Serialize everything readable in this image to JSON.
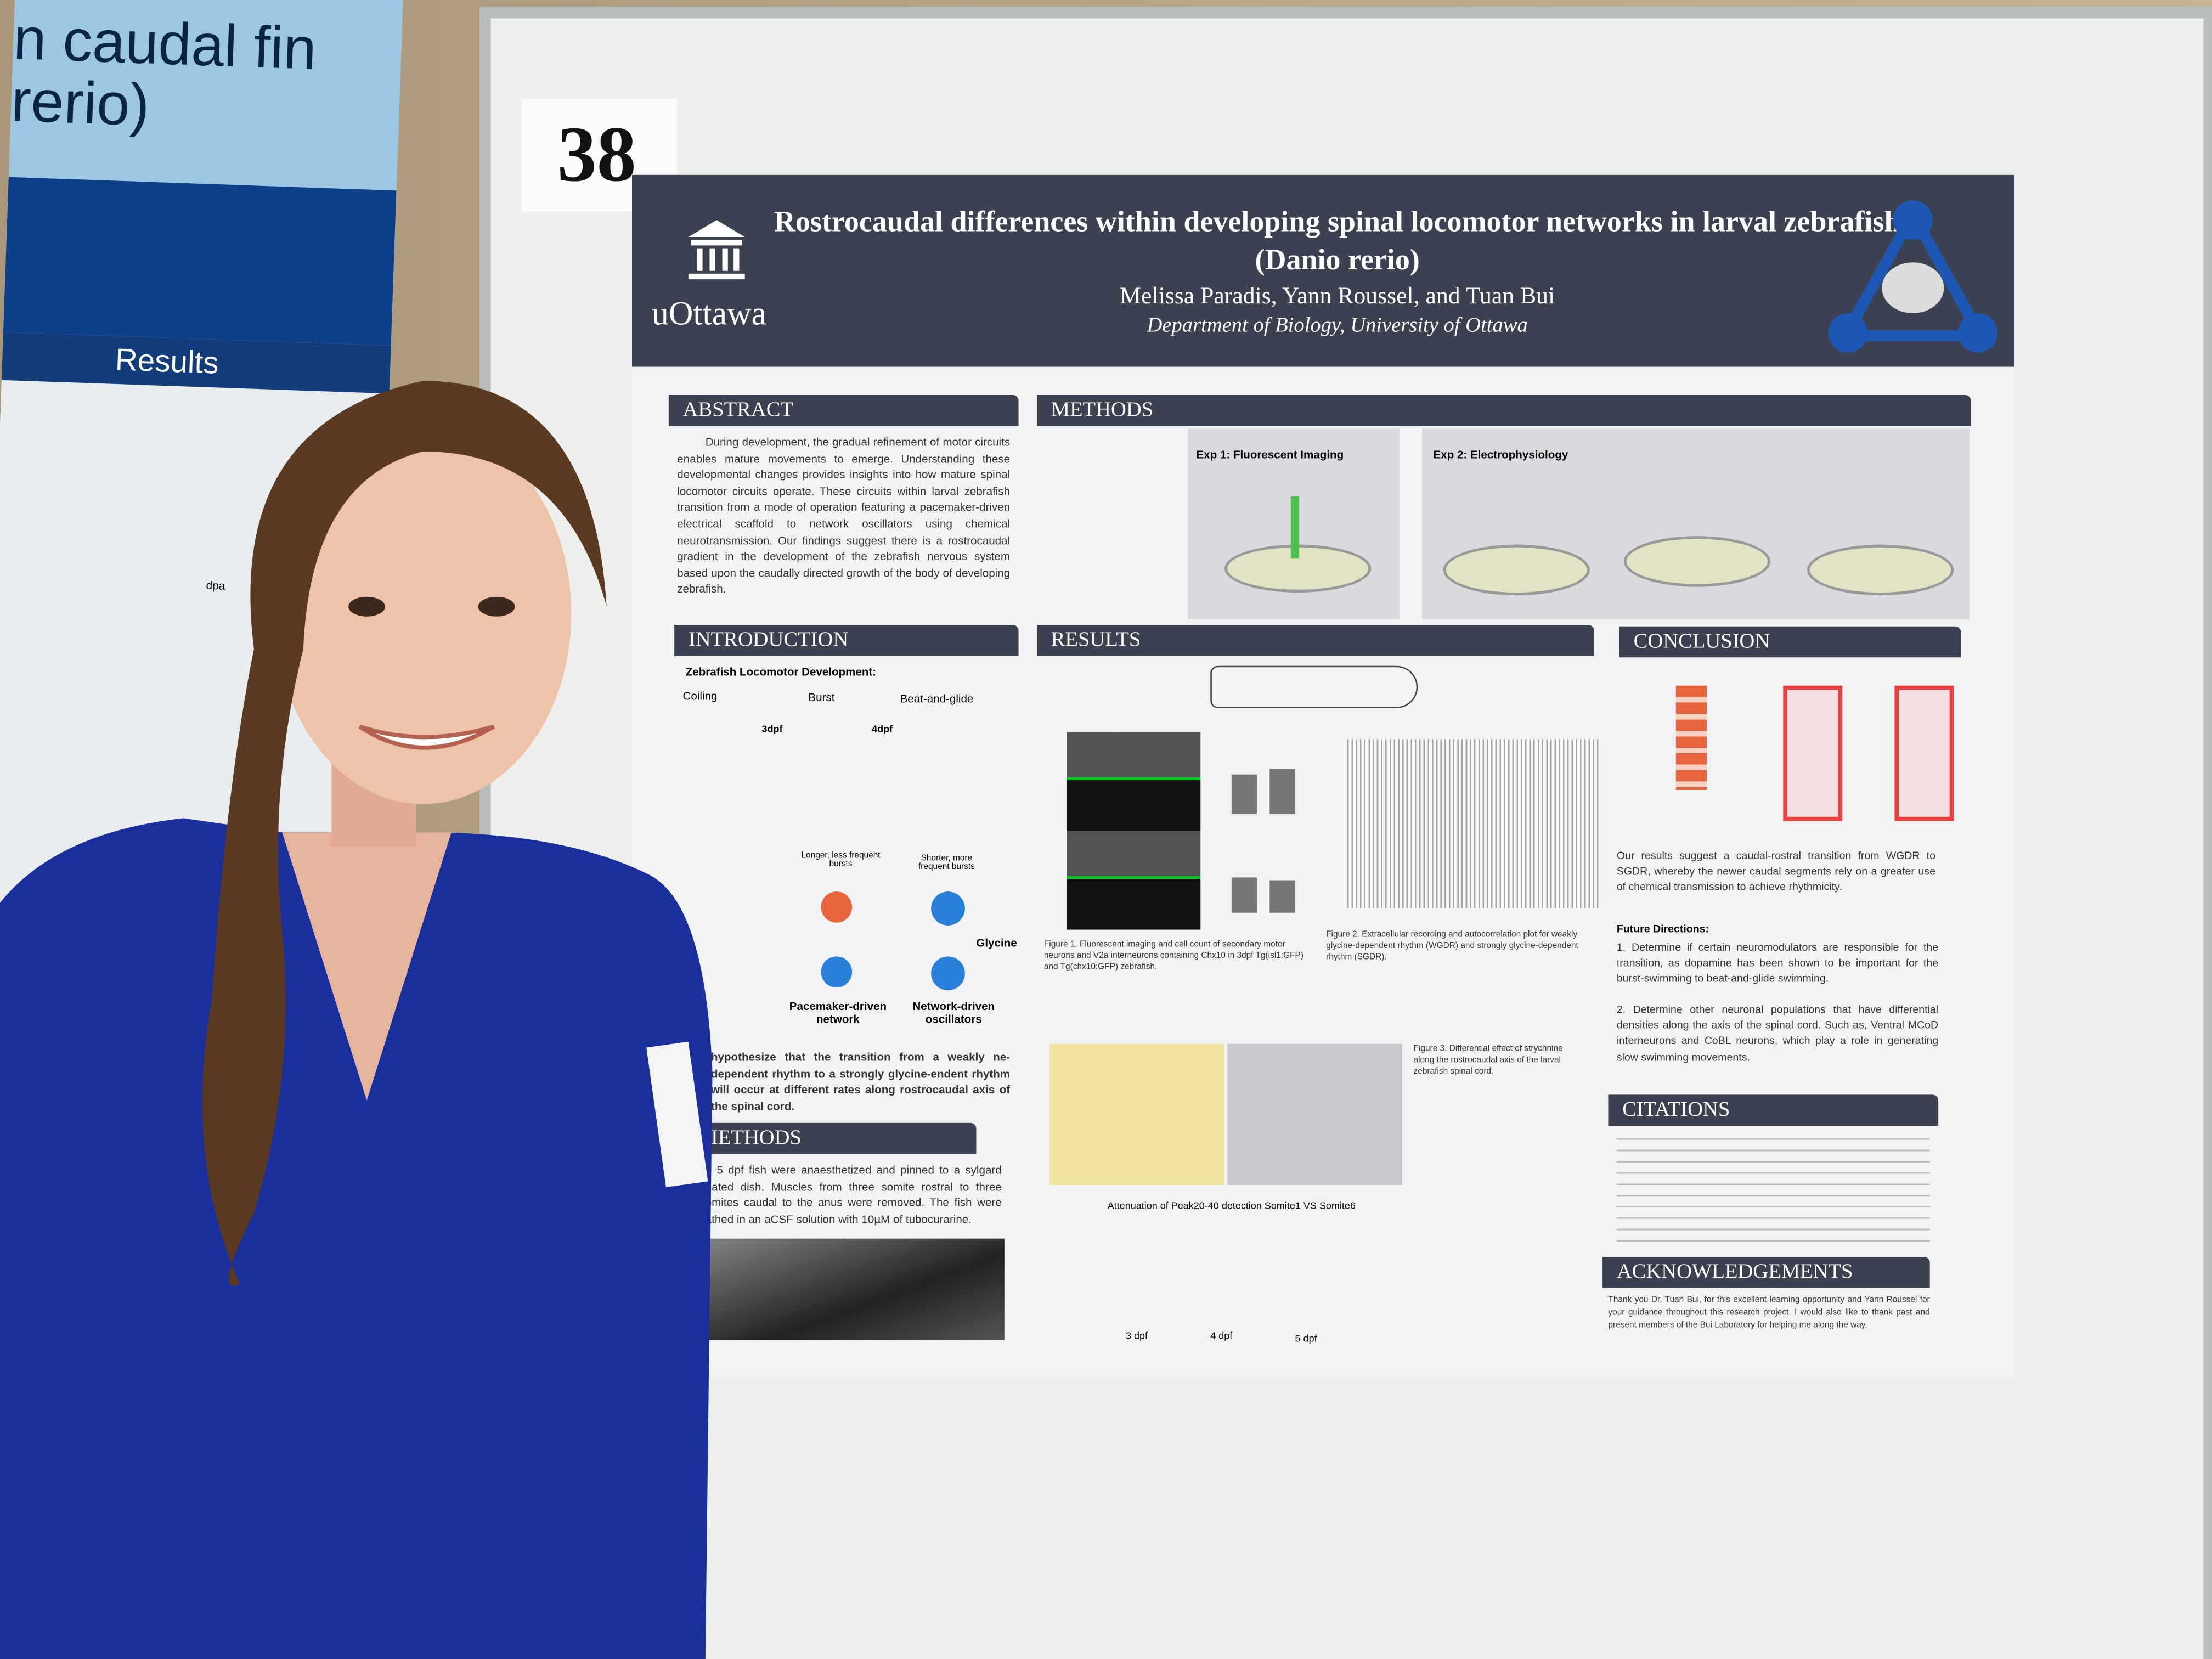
{
  "left_poster": {
    "title": "n caudal fin\nrerio)",
    "section": "Results",
    "axis_label": "dpa"
  },
  "poster_number": "38",
  "poster": {
    "title": "Rostrocaudal differences within developing spinal locomotor networks in larval zebrafish (Danio rerio)",
    "authors": "Melissa Paradis, Yann Roussel, and Tuan Bui",
    "department": "Department of Biology, University of Ottawa",
    "logo": "uOttawa",
    "sections": {
      "abstract": {
        "heading": "ABSTRACT",
        "text": "During development, the gradual refinement of motor circuits enables mature movements to emerge. Understanding these developmental changes provides insights into how mature spinal locomotor circuits operate. These circuits within larval zebrafish transition from a mode of operation featuring a pacemaker-driven electrical scaffold to network oscillators using chemical neurotransmission. Our findings suggest there is a rostrocaudal gradient in the development of the zebrafish nervous system based upon the caudally directed growth of the body of developing zebrafish."
      },
      "methods_top": {
        "heading": "METHODS",
        "exp1": "Exp 1: Fluorescent Imaging",
        "exp2": "Exp 2: Electrophysiology"
      },
      "introduction": {
        "heading": "INTRODUCTION",
        "subtitle": "Zebrafish Locomotor Development:",
        "stages": [
          "Coiling",
          "Burst",
          "Beat-and-glide"
        ],
        "ages": [
          "3dpf",
          "4dpf"
        ],
        "bursts": [
          "Longer, less frequent bursts",
          "Shorter, more frequent bursts"
        ],
        "networks": [
          "Pacemaker-driven network",
          "Network-driven oscillators"
        ],
        "glycine": "Glycine",
        "hypothesis": "hypothesize that the transition from a weakly ne-dependent rhythm to a strongly glycine-endent rhythm will occur at different rates along rostrocaudal axis of the spinal cord."
      },
      "methods": {
        "heading": "IETHODS",
        "text": "o 5 dpf fish were anaesthetized and pinned to a sylgard oated dish. Muscles from three somite rostral to three omites caudal to the anus were removed. The fish were athed in an aCSF solution with 10µM of tubocurarine."
      },
      "results": {
        "heading": "RESULTS",
        "fig1": "Figure 1. Fluorescent imaging and cell count of secondary motor neurons and V2a interneurons containing Chx10 in 3dpf Tg(isl1:GFP) and Tg(chx10:GFP) zebrafish.",
        "fig2": "Figure 2. Extracellular recording and autocorrelation plot for weakly glycine-dependent rhythm (WGDR) and strongly glycine-dependent rhythm (SGDR).",
        "fig3": "Figure 3. Differential effect of strychnine along the rostrocaudal axis of the larval zebrafish spinal cord.",
        "chart_b_title": "Attenuation of Peak20-40 detection Somite1 VS Somite6",
        "x_labels": [
          "3 dpf",
          "4 dpf",
          "5 dpf"
        ]
      },
      "conclusion": {
        "heading": "CONCLUSION",
        "text": "Our results suggest a caudal-rostral transition from WGDR to SGDR, whereby the newer caudal segments rely on a greater use of chemical transmission to achieve rhythmicity.",
        "future_heading": "Future Directions:",
        "future": [
          "1. Determine if certain neuromodulators are responsible for the transition, as dopamine has been shown to be important for the burst-swimming to beat-and-glide swimming.",
          "2. Determine other neuronal populations that have differential densities along the axis of the spinal cord. Such as, Ventral MCoD interneurons and CoBL neurons, which play a role in generating slow swimming movements."
        ]
      },
      "citations": {
        "heading": "CITATIONS"
      },
      "acknowledgements": {
        "heading": "ACKNOWLEDGEMENTS",
        "text": "Thank you Dr. Tuan Bui, for this excellent learning opportunity and Yann Roussel for your guidance throughout this research project. I would also like to thank past and present members of the Bui Laboratory for helping me along the way."
      }
    }
  },
  "colors": {
    "header": "#3b4150",
    "shirt": "#1a2f9c",
    "hair": "#5a3a22",
    "left_poster_blue": "#0e3f8a"
  }
}
